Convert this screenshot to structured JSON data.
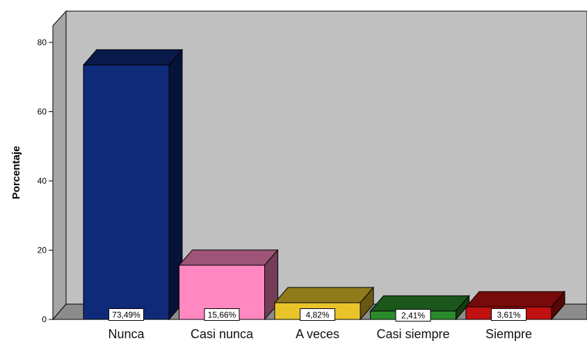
{
  "chart_data": {
    "type": "bar",
    "style": "3d",
    "categories": [
      "Nunca",
      "Casi nunca",
      "A veces",
      "Casi siempre",
      "Siempre"
    ],
    "values": [
      73.49,
      15.66,
      4.82,
      2.41,
      3.61
    ],
    "data_labels": [
      "73,49%",
      "15,66%",
      "4,82%",
      "2,41%",
      "3,61%"
    ],
    "colors": [
      "#0f2a78",
      "#ff88c0",
      "#e8c42a",
      "#2b8a2b",
      "#c01010"
    ],
    "ylabel": "Porcentaje",
    "yticks": [
      0,
      20,
      40,
      60,
      80
    ],
    "ylim": [
      0,
      80
    ],
    "background": "#c0c0c0",
    "floor_color": "#8c8c8c",
    "grid": false
  }
}
